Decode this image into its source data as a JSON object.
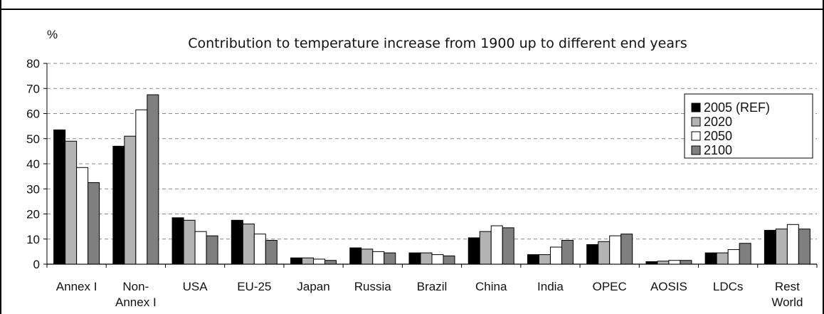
{
  "chart_data": {
    "type": "bar",
    "title": "Contribution to temperature increase from 1900 up to different end years",
    "ylabel": "%",
    "xlabel": "",
    "ylim": [
      0,
      80
    ],
    "yticks": [
      0,
      10,
      20,
      30,
      40,
      50,
      60,
      70,
      80
    ],
    "grid": true,
    "legend_position": "top-right",
    "categories": [
      [
        "Annex I"
      ],
      [
        "Non-",
        "Annex I"
      ],
      [
        "USA"
      ],
      [
        "EU-25"
      ],
      [
        "Japan"
      ],
      [
        "Russia"
      ],
      [
        "Brazil"
      ],
      [
        "China"
      ],
      [
        "India"
      ],
      [
        "OPEC"
      ],
      [
        "AOSIS"
      ],
      [
        "LDCs"
      ],
      [
        "Rest",
        "World"
      ]
    ],
    "series": [
      {
        "name": "2005 (REF)",
        "color": "#000000",
        "values": [
          53.5,
          47,
          18.5,
          17.5,
          2.5,
          6.5,
          4.5,
          10.5,
          3.8,
          7.8,
          1.0,
          4.5,
          13.5
        ]
      },
      {
        "name": "2020",
        "color": "#b3b3b3",
        "values": [
          49,
          51,
          17.5,
          16,
          2.5,
          6,
          4.5,
          13,
          3.8,
          9,
          1.2,
          4.5,
          14
        ]
      },
      {
        "name": "2050",
        "color": "#ffffff",
        "values": [
          38.5,
          61.5,
          13,
          12,
          2.0,
          5,
          3.8,
          15.3,
          6.8,
          11.3,
          1.5,
          5.8,
          15.8
        ]
      },
      {
        "name": "2100",
        "color": "#7f7f7f",
        "values": [
          32.5,
          67.5,
          11.3,
          9.5,
          1.5,
          4.5,
          3.3,
          14.5,
          9.5,
          12,
          1.5,
          8.3,
          14
        ]
      }
    ]
  }
}
